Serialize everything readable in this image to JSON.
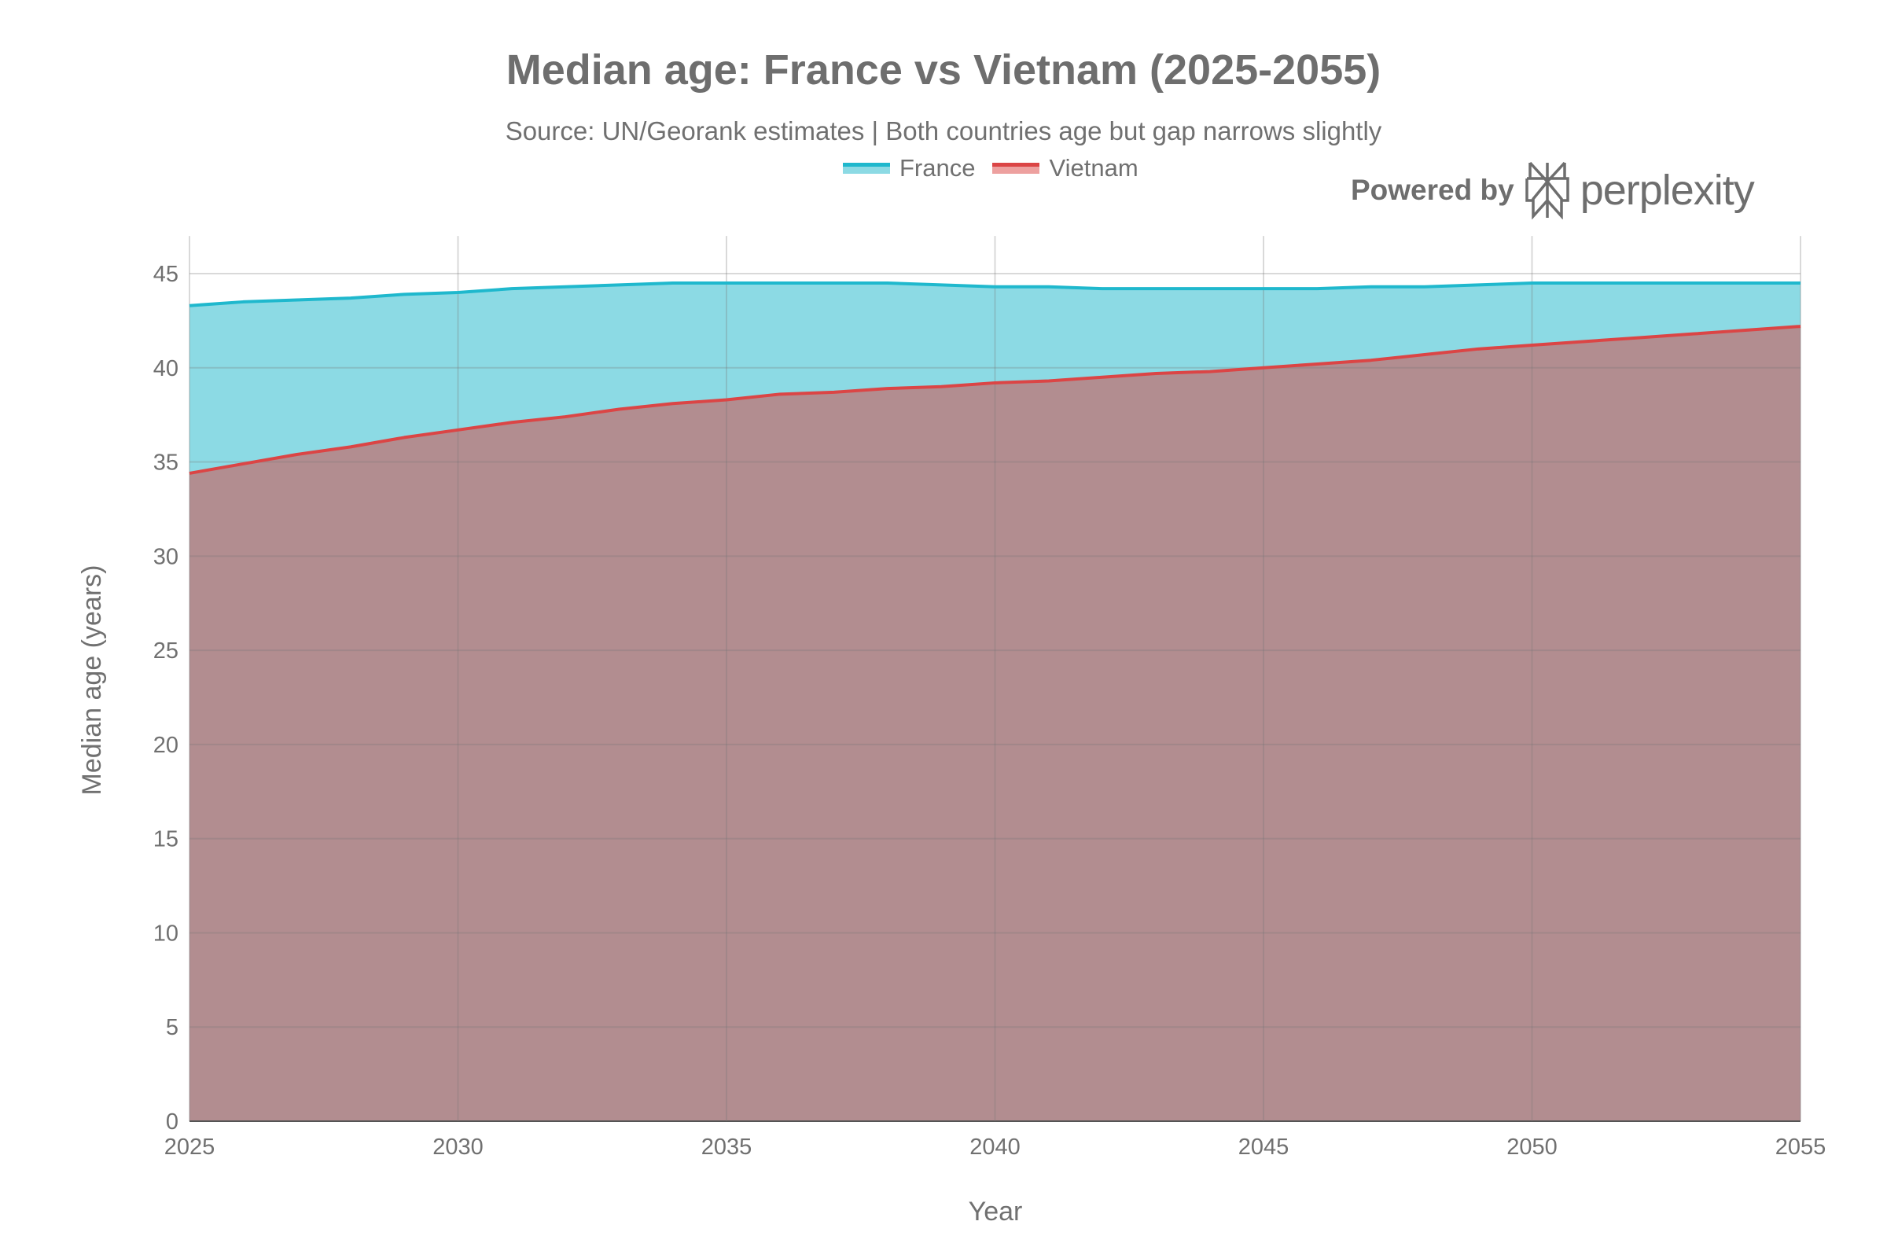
{
  "chart_data": {
    "type": "area",
    "title": "Median age: France vs Vietnam (2025-2055)",
    "subtitle": "Source: UN/Georank estimates | Both countries age but gap narrows slightly",
    "xlabel": "Year",
    "ylabel": "Median age (years)",
    "xlim": [
      2025,
      2055
    ],
    "ylim": [
      0,
      47
    ],
    "x_ticks": [
      2025,
      2030,
      2035,
      2040,
      2045,
      2050,
      2055
    ],
    "y_ticks": [
      0,
      5,
      10,
      15,
      20,
      25,
      30,
      35,
      40,
      45
    ],
    "grid": true,
    "legend_position": "top-center",
    "x": [
      2025,
      2026,
      2027,
      2028,
      2029,
      2030,
      2031,
      2032,
      2033,
      2034,
      2035,
      2036,
      2037,
      2038,
      2039,
      2040,
      2041,
      2042,
      2043,
      2044,
      2045,
      2046,
      2047,
      2048,
      2049,
      2050,
      2051,
      2052,
      2053,
      2054,
      2055
    ],
    "series": [
      {
        "name": "France",
        "line_color": "#1fb8cd",
        "fill_color": "#8cdae4",
        "values": [
          43.3,
          43.5,
          43.6,
          43.7,
          43.9,
          44.0,
          44.2,
          44.3,
          44.4,
          44.5,
          44.5,
          44.5,
          44.5,
          44.5,
          44.4,
          44.3,
          44.3,
          44.2,
          44.2,
          44.2,
          44.2,
          44.2,
          44.3,
          44.3,
          44.4,
          44.5,
          44.5,
          44.5,
          44.5,
          44.5,
          44.5
        ]
      },
      {
        "name": "Vietnam",
        "line_color": "#db4545",
        "fill_color": "#b28d90",
        "legend_fill": "#eda09f",
        "values": [
          34.4,
          34.9,
          35.4,
          35.8,
          36.3,
          36.7,
          37.1,
          37.4,
          37.8,
          38.1,
          38.3,
          38.6,
          38.7,
          38.9,
          39.0,
          39.2,
          39.3,
          39.5,
          39.7,
          39.8,
          40.0,
          40.2,
          40.4,
          40.7,
          41.0,
          41.2,
          41.4,
          41.6,
          41.8,
          42.0,
          42.2
        ]
      }
    ]
  },
  "branding": {
    "powered_by": "Powered by",
    "logo_text": "perplexity"
  }
}
